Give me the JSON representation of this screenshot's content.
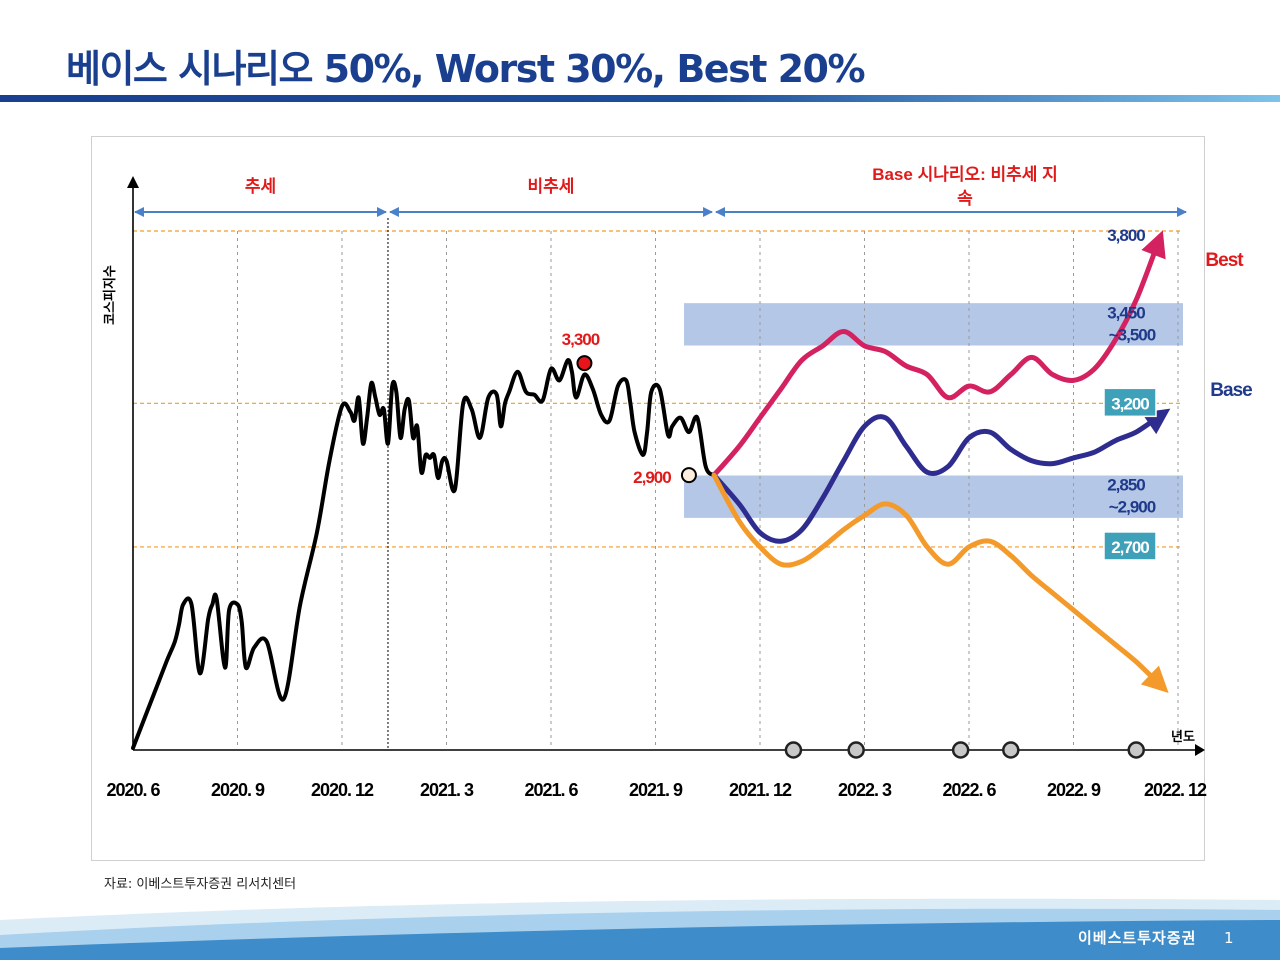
{
  "slide": {
    "title": "베이스 시나리오 50%, Worst 30%, Best 20%",
    "source": "자료: 이베스트투자증권 리서치센터",
    "company": "이베스트투자증권",
    "page": "1"
  },
  "colors": {
    "title": "#1a3f8f",
    "kospi": "#000000",
    "best": "#d4215f",
    "base": "#2e2d8f",
    "worst": "#f39a2b",
    "band": "#b4c7e7",
    "ref_line": "#f39a2b",
    "period_arrow": "#4a80c8",
    "red_label": "#e01a1a",
    "navy_label": "#1f3a8a",
    "tag_bg": "#3fa0b9"
  },
  "chart_data": {
    "type": "line",
    "ylabel": "코스피지수",
    "xlabel": "년도",
    "ylim": [
      2000,
      3900
    ],
    "xlim": [
      2020.5,
      2022.95
    ],
    "x_ticks": [
      {
        "x": 2020.5,
        "label": "2020. 6"
      },
      {
        "x": 2020.75,
        "label": "2020. 9"
      },
      {
        "x": 2021.0,
        "label": "2020. 12"
      },
      {
        "x": 2021.25,
        "label": "2021. 3"
      },
      {
        "x": 2021.5,
        "label": "2021. 6"
      },
      {
        "x": 2021.75,
        "label": "2021. 9"
      },
      {
        "x": 2022.0,
        "label": "2021. 12"
      },
      {
        "x": 2022.25,
        "label": "2022. 3"
      },
      {
        "x": 2022.5,
        "label": "2022. 6"
      },
      {
        "x": 2022.75,
        "label": "2022. 9"
      },
      {
        "x": 2023.0,
        "label": "2022. 12"
      }
    ],
    "periods": [
      {
        "label": "추세",
        "from": 2020.5,
        "to": 2021.11
      },
      {
        "label": "비추세",
        "from": 2021.11,
        "to": 2021.89
      },
      {
        "label": "Base 시나리오: 비추세 지",
        "label2": "속",
        "from": 2021.89,
        "to": 2022.95
      }
    ],
    "reference_lines": [
      3800,
      3200,
      2700
    ],
    "bands": [
      {
        "from": 3450,
        "to": 3500,
        "label": "3,450",
        "label2": "~3,500"
      },
      {
        "from": 2850,
        "to": 2900,
        "label": "2,850",
        "label2": "~2,900"
      }
    ],
    "level_labels": [
      {
        "value": 3800,
        "label": "3,800",
        "tag": false
      },
      {
        "value": 3200,
        "label": "3,200",
        "tag": true
      },
      {
        "value": 2700,
        "label": "2,700",
        "tag": true
      }
    ],
    "series": [
      {
        "name": "KOSPI",
        "x": [
          2020.5,
          2020.54,
          2020.58,
          2020.6,
          2020.61,
          2020.62,
          2020.64,
          2020.66,
          2020.68,
          2020.69,
          2020.7,
          2020.72,
          2020.73,
          2020.75,
          2020.76,
          2020.77,
          2020.79,
          2020.82,
          2020.86,
          2020.9,
          2020.94,
          2020.97,
          2021.0,
          2021.02,
          2021.03,
          2021.04,
          2021.05,
          2021.06,
          2021.07,
          2021.08,
          2021.09,
          2021.1,
          2021.11,
          2021.12,
          2021.13,
          2021.14,
          2021.15,
          2021.16,
          2021.17,
          2021.18,
          2021.19,
          2021.2,
          2021.21,
          2021.22,
          2021.23,
          2021.24,
          2021.25,
          2021.27,
          2021.29,
          2021.31,
          2021.33,
          2021.35,
          2021.37,
          2021.38,
          2021.39,
          2021.4,
          2021.42,
          2021.44,
          2021.46,
          2021.48,
          2021.5,
          2021.52,
          2021.54,
          2021.55,
          2021.56,
          2021.58,
          2021.6,
          2021.62,
          2021.64,
          2021.66,
          2021.68,
          2021.69,
          2021.7,
          2021.72,
          2021.73,
          2021.74,
          2021.76,
          2021.78,
          2021.79,
          2021.81,
          2021.83,
          2021.85,
          2021.87,
          2021.89
        ],
        "y": [
          2000,
          2150,
          2300,
          2370,
          2430,
          2500,
          2500,
          2260,
          2450,
          2500,
          2520,
          2280,
          2480,
          2500,
          2440,
          2280,
          2350,
          2370,
          2170,
          2500,
          2750,
          3000,
          3190,
          3170,
          3140,
          3220,
          3060,
          3150,
          3270,
          3220,
          3160,
          3180,
          3060,
          3260,
          3240,
          3080,
          3180,
          3210,
          3080,
          3120,
          2960,
          3020,
          3010,
          3020,
          2940,
          3000,
          3000,
          2900,
          3200,
          3180,
          3080,
          3220,
          3230,
          3120,
          3200,
          3240,
          3310,
          3240,
          3230,
          3210,
          3320,
          3280,
          3350,
          3310,
          3220,
          3300,
          3250,
          3160,
          3140,
          3260,
          3280,
          3200,
          3100,
          3020,
          3100,
          3240,
          3250,
          3090,
          3120,
          3150,
          3100,
          3150,
          2980,
          2950
        ]
      },
      {
        "name": "Best",
        "x": [
          2021.89,
          2021.95,
          2022.0,
          2022.05,
          2022.1,
          2022.15,
          2022.2,
          2022.25,
          2022.3,
          2022.35,
          2022.4,
          2022.45,
          2022.5,
          2022.55,
          2022.6,
          2022.65,
          2022.7,
          2022.75,
          2022.8,
          2022.85,
          2022.9,
          2022.95
        ],
        "y": [
          2950,
          3050,
          3150,
          3250,
          3350,
          3400,
          3450,
          3400,
          3380,
          3330,
          3300,
          3220,
          3260,
          3240,
          3300,
          3360,
          3300,
          3280,
          3320,
          3420,
          3560,
          3750
        ]
      },
      {
        "name": "Base",
        "x": [
          2021.89,
          2021.95,
          2022.0,
          2022.05,
          2022.1,
          2022.15,
          2022.2,
          2022.25,
          2022.3,
          2022.35,
          2022.4,
          2022.45,
          2022.5,
          2022.55,
          2022.6,
          2022.65,
          2022.7,
          2022.75,
          2022.8,
          2022.85,
          2022.9,
          2022.95
        ],
        "y": [
          2950,
          2850,
          2750,
          2720,
          2760,
          2870,
          3000,
          3120,
          3150,
          3050,
          2960,
          2980,
          3080,
          3100,
          3040,
          3000,
          2990,
          3010,
          3030,
          3070,
          3100,
          3150
        ]
      },
      {
        "name": "Worst",
        "x": [
          2021.89,
          2021.95,
          2022.0,
          2022.05,
          2022.1,
          2022.15,
          2022.2,
          2022.25,
          2022.3,
          2022.35,
          2022.4,
          2022.45,
          2022.5,
          2022.55,
          2022.6,
          2022.65,
          2022.7,
          2022.75,
          2022.8,
          2022.85,
          2022.9,
          2022.95
        ],
        "y": [
          2950,
          2790,
          2700,
          2640,
          2650,
          2700,
          2760,
          2810,
          2850,
          2810,
          2700,
          2640,
          2700,
          2720,
          2670,
          2600,
          2540,
          2480,
          2420,
          2360,
          2300,
          2230
        ]
      }
    ],
    "annotations": [
      {
        "label": "3,300",
        "x": 2021.58,
        "y": 3340,
        "marker": "red"
      },
      {
        "label": "2,900",
        "x": 2021.83,
        "y": 2950,
        "marker": "hollow"
      }
    ],
    "timeline_markers": [
      2022.08,
      2022.23,
      2022.48,
      2022.6,
      2022.9
    ],
    "series_end_labels": {
      "Best": "Best",
      "Base": "Base"
    }
  }
}
